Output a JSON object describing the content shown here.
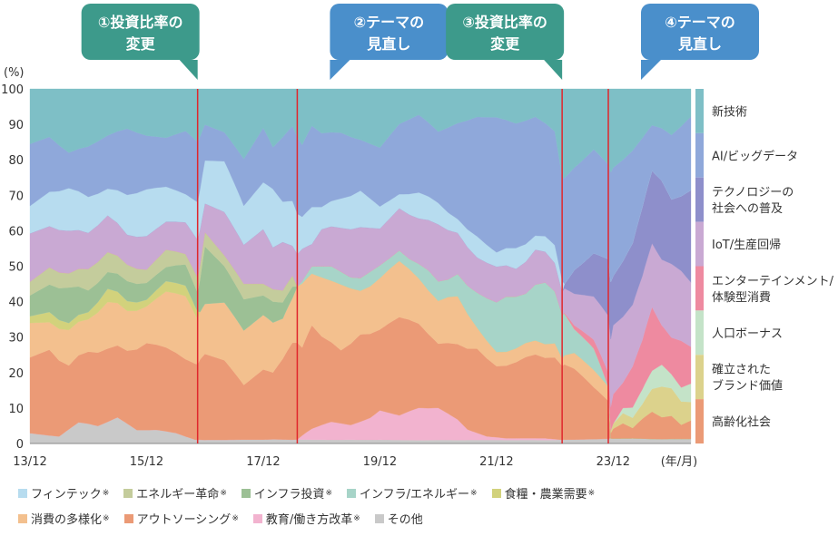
{
  "chart_data": {
    "type": "area",
    "stacked": true,
    "y_unit_label": "(%)",
    "x_unit_label": "(年/月)",
    "ylim": [
      0,
      100
    ],
    "y_ticks": [
      0,
      10,
      20,
      30,
      40,
      50,
      60,
      70,
      80,
      90,
      100
    ],
    "x_tick_labels": [
      {
        "label": "13/12",
        "t": 0
      },
      {
        "label": "15/12",
        "t": 24
      },
      {
        "label": "17/12",
        "t": 48
      },
      {
        "label": "19/12",
        "t": 72
      },
      {
        "label": "21/12",
        "t": 96
      },
      {
        "label": "23/12",
        "t": 120
      }
    ],
    "x_range_months": [
      0,
      136
    ],
    "events": [
      {
        "t": 34.5,
        "line1": "①投資比率の",
        "line2": "変更",
        "color": "#3d9a8b"
      },
      {
        "t": 55,
        "line1": "②テーマの",
        "line2": "見直し",
        "color": "#4a8fcb"
      },
      {
        "t": 109.5,
        "line1": "③投資比率の",
        "line2": "変更",
        "color": "#3d9a8b"
      },
      {
        "t": 119,
        "line1": "④テーマの",
        "line2": "見直し",
        "color": "#4a8fcb"
      }
    ],
    "series": [
      {
        "key": "sonota",
        "name": "その他",
        "legend": true,
        "star": false,
        "color": "#c9c9c9",
        "t": [
          0,
          6,
          10,
          14,
          18,
          22,
          26,
          30,
          34,
          40,
          46,
          50,
          54,
          58,
          62,
          66,
          70,
          74,
          78,
          82,
          86,
          90,
          94,
          98,
          102,
          106,
          110,
          136
        ],
        "v": [
          3,
          2,
          6,
          5,
          8,
          4,
          4,
          3,
          1,
          1,
          1,
          1,
          1,
          1,
          1,
          1,
          1,
          1,
          1,
          1,
          1,
          1,
          1,
          1,
          1,
          1,
          1,
          1
        ]
      },
      {
        "key": "kyouiku",
        "name": "教育/働き方改革",
        "legend": true,
        "star": true,
        "color": "#f2b3cf",
        "t": [
          0,
          52,
          55,
          58,
          62,
          66,
          70,
          72,
          76,
          80,
          84,
          88,
          90,
          94,
          98,
          102,
          106,
          109.5
        ],
        "v": [
          0,
          0,
          0,
          3,
          5,
          4,
          6,
          8,
          7,
          10,
          9,
          6,
          3,
          1,
          0.5,
          0.5,
          0.5,
          0
        ]
      },
      {
        "key": "outsourcing",
        "name": "アウトソーシング",
        "legend": true,
        "star": true,
        "color": "#eb9a76",
        "t": [
          0,
          4,
          8,
          12,
          16,
          20,
          24,
          28,
          32,
          34.5,
          36,
          40,
          44,
          48,
          50,
          52,
          54,
          56,
          58,
          60,
          64,
          68,
          72,
          76,
          80,
          84,
          88,
          92,
          96,
          100,
          104,
          108,
          109.5,
          112,
          116,
          119
        ],
        "v": [
          22,
          25,
          18,
          20,
          22,
          22,
          26,
          24,
          22,
          20,
          24,
          22,
          14,
          18,
          16,
          20,
          26,
          22,
          28,
          24,
          20,
          24,
          22,
          28,
          26,
          18,
          22,
          24,
          20,
          22,
          24,
          23,
          20,
          18,
          12,
          8
        ]
      },
      {
        "key": "shouhi",
        "name": "消費の多様化",
        "legend": true,
        "star": true,
        "color": "#f3c08e",
        "t": [
          0,
          4,
          8,
          12,
          16,
          20,
          24,
          28,
          32,
          34.5,
          36,
          40,
          44,
          48,
          50,
          52,
          54,
          56,
          58,
          60,
          64,
          68,
          72,
          76,
          80,
          84,
          88,
          92,
          96,
          100,
          104,
          108,
          109.5,
          112,
          116,
          119
        ],
        "v": [
          10,
          8,
          10,
          9,
          14,
          12,
          11,
          16,
          18,
          12,
          14,
          16,
          14,
          14,
          12,
          10,
          12,
          16,
          14,
          16,
          18,
          12,
          14,
          16,
          14,
          12,
          14,
          6,
          4,
          4,
          4,
          4,
          2,
          4,
          4,
          3
        ]
      },
      {
        "key": "shokuryou",
        "name": "食糧・農業需要",
        "legend": true,
        "star": true,
        "color": "#d2d27c",
        "t": [
          0,
          4,
          8,
          12,
          16,
          20,
          24,
          28,
          32,
          34.5
        ],
        "v": [
          2,
          3,
          2,
          2,
          4,
          3,
          2,
          3,
          3,
          2
        ]
      },
      {
        "key": "infra_energy",
        "name": "インフラ/エネルギー",
        "legend": true,
        "star": true,
        "color": "#a7d4c8",
        "t": [
          0,
          34.5,
          36,
          55,
          58,
          62,
          66,
          70,
          74,
          78,
          82,
          86,
          90,
          94,
          98,
          102,
          106,
          109.5,
          112,
          116,
          119
        ],
        "v": [
          0,
          0,
          0,
          0,
          2,
          4,
          3,
          4,
          3,
          3,
          6,
          5,
          8,
          12,
          16,
          14,
          18,
          12,
          6,
          5,
          0
        ]
      },
      {
        "key": "infra_toushi",
        "name": "インフラ投資",
        "legend": true,
        "star": true,
        "color": "#9cc095",
        "t": [
          0,
          4,
          8,
          12,
          16,
          20,
          24,
          28,
          32,
          34.5,
          36,
          40,
          44,
          48,
          50,
          52,
          54,
          55,
          58
        ],
        "v": [
          6,
          8,
          10,
          6,
          5,
          6,
          5,
          4,
          6,
          5,
          16,
          10,
          8,
          5,
          5,
          4,
          3,
          0,
          0
        ]
      },
      {
        "key": "energy_kakumei",
        "name": "エネルギー革命",
        "legend": true,
        "star": true,
        "color": "#c4cc9c",
        "t": [
          0,
          4,
          8,
          12,
          16,
          20,
          24,
          28,
          32,
          34.5,
          36,
          40,
          44,
          48,
          50,
          52,
          54,
          55,
          58
        ],
        "v": [
          4,
          5,
          4,
          6,
          6,
          5,
          4,
          5,
          3,
          4,
          4,
          3,
          4,
          3,
          3,
          3,
          3,
          0,
          0
        ]
      },
      {
        "key": "koureika",
        "name": "高齢化社会",
        "legend": false,
        "star": false,
        "color": "#eb9a76",
        "t": [
          0,
          119,
          120,
          122,
          124,
          126,
          128,
          130,
          132,
          134,
          136
        ],
        "v": [
          0,
          0,
          2,
          3,
          2,
          4,
          6,
          5,
          5,
          3,
          4
        ]
      },
      {
        "key": "brand",
        "name": "確立されたブランド価値",
        "legend": false,
        "star": false,
        "color": "#dcd28c",
        "t": [
          0,
          119,
          120,
          122,
          124,
          126,
          128,
          130,
          132,
          134,
          136
        ],
        "v": [
          0,
          0,
          1,
          2,
          2,
          3,
          5,
          7,
          6,
          5,
          4
        ]
      },
      {
        "key": "jinkou",
        "name": "人口ボーナス",
        "legend": false,
        "star": false,
        "color": "#c4e3c8",
        "t": [
          0,
          119,
          120,
          122,
          124,
          126,
          128,
          130,
          132,
          134,
          136
        ],
        "v": [
          0,
          0,
          0,
          1,
          2,
          3,
          4,
          5,
          3,
          3,
          4
        ]
      },
      {
        "key": "entertainment",
        "name": "エンターテインメント/体験型消費",
        "legend": false,
        "star": false,
        "color": "#ee8aa0",
        "t": [
          0,
          109.5,
          112,
          116,
          119,
          120,
          122,
          124,
          126,
          128,
          130,
          132,
          134,
          136
        ],
        "v": [
          0,
          0,
          1,
          2,
          3,
          6,
          5,
          8,
          10,
          14,
          9,
          8,
          10,
          8
        ]
      },
      {
        "key": "iot",
        "name": "IoT/生産回帰",
        "legend": false,
        "star": false,
        "color": "#c9a9d3",
        "t": [
          0,
          4,
          8,
          12,
          16,
          20,
          24,
          28,
          32,
          34.5,
          36,
          40,
          44,
          48,
          50,
          52,
          54,
          56,
          58,
          60,
          64,
          68,
          72,
          76,
          80,
          84,
          88,
          92,
          96,
          100,
          104,
          108,
          109.5,
          112,
          116,
          119,
          120,
          124,
          128,
          132,
          136
        ],
        "v": [
          14,
          12,
          12,
          10,
          11,
          9,
          10,
          8,
          9,
          10,
          8,
          12,
          10,
          14,
          10,
          12,
          8,
          8,
          6,
          10,
          12,
          14,
          10,
          12,
          14,
          16,
          12,
          10,
          10,
          8,
          10,
          8,
          6,
          8,
          10,
          12,
          14,
          12,
          14,
          16,
          14
        ]
      },
      {
        "key": "techno",
        "name": "テクノロジーの社会への普及",
        "legend": false,
        "star": false,
        "color": "#8e8fcb",
        "t": [
          0,
          109.5,
          112,
          116,
          119,
          120,
          124,
          128,
          130,
          132,
          134,
          136
        ],
        "v": [
          0,
          0,
          6,
          10,
          12,
          10,
          12,
          16,
          18,
          14,
          16,
          20
        ]
      },
      {
        "key": "fintech",
        "name": "フィンテック",
        "legend": true,
        "star": true,
        "color": "#b7dcef",
        "t": [
          0,
          4,
          8,
          12,
          16,
          20,
          24,
          28,
          32,
          34.5,
          36,
          40,
          44,
          48,
          50,
          52,
          54,
          56,
          58,
          60,
          64,
          68,
          72,
          76,
          80,
          84,
          88,
          92,
          96,
          100,
          104,
          108,
          109.5
        ],
        "v": [
          8,
          10,
          12,
          10,
          8,
          12,
          14,
          10,
          8,
          10,
          12,
          14,
          10,
          12,
          14,
          10,
          12,
          8,
          10,
          6,
          8,
          10,
          6,
          4,
          8,
          6,
          4,
          6,
          4,
          6,
          4,
          5,
          3
        ]
      },
      {
        "key": "ai",
        "name": "AI/ビッグデータ",
        "legend": false,
        "star": false,
        "color": "#8fa8da",
        "t": [
          0,
          4,
          8,
          12,
          16,
          20,
          24,
          28,
          32,
          34.5,
          36,
          40,
          44,
          48,
          50,
          52,
          54,
          56,
          58,
          60,
          64,
          68,
          72,
          76,
          80,
          84,
          88,
          92,
          96,
          100,
          104,
          108,
          109.5,
          112,
          116,
          119,
          120,
          124,
          128,
          132,
          136
        ],
        "v": [
          18,
          16,
          10,
          14,
          16,
          20,
          16,
          14,
          18,
          16,
          10,
          8,
          12,
          14,
          10,
          16,
          20,
          18,
          22,
          20,
          18,
          14,
          16,
          20,
          24,
          20,
          28,
          34,
          38,
          36,
          34,
          32,
          28,
          26,
          24,
          20,
          22,
          18,
          10,
          14,
          16
        ]
      },
      {
        "key": "shingijutsu",
        "name": "新技術",
        "legend": false,
        "star": false,
        "color": "#7ebfc6",
        "t": [
          0,
          4,
          8,
          12,
          16,
          20,
          24,
          28,
          32,
          34.5,
          36,
          40,
          44,
          48,
          50,
          52,
          54,
          56,
          58,
          60,
          64,
          68,
          72,
          76,
          80,
          84,
          88,
          92,
          96,
          100,
          104,
          108,
          109.5,
          112,
          116,
          119,
          120,
          124,
          128,
          132,
          136
        ],
        "v": [
          16,
          14,
          18,
          16,
          14,
          12,
          14,
          14,
          12,
          14,
          10,
          12,
          18,
          10,
          14,
          12,
          10,
          14,
          10,
          12,
          12,
          14,
          16,
          10,
          8,
          12,
          10,
          8,
          8,
          10,
          8,
          12,
          24,
          20,
          14,
          16,
          16,
          12,
          8,
          10,
          6
        ]
      }
    ],
    "right_legend": [
      {
        "lines": [
          "新技術"
        ],
        "color": "#7ebfc6"
      },
      {
        "lines": [
          "AI/ビッグデータ"
        ],
        "color": "#8fa8da"
      },
      {
        "lines": [
          "テクノロジーの",
          "社会への普及"
        ],
        "color": "#8e8fcb"
      },
      {
        "lines": [
          "IoT/生産回帰"
        ],
        "color": "#c9a9d3"
      },
      {
        "lines": [
          "エンターテインメント/",
          "体験型消費"
        ],
        "color": "#ee8aa0"
      },
      {
        "lines": [
          "人口ボーナス"
        ],
        "color": "#c4e3c8"
      },
      {
        "lines": [
          "確立された",
          "ブランド価値"
        ],
        "color": "#dcd28c"
      },
      {
        "lines": [
          "高齢化社会"
        ],
        "color": "#eb9a76"
      }
    ],
    "bottom_legend_rows": [
      [
        "fintech",
        "energy_kakumei",
        "infra_toushi",
        "infra_energy",
        "shokuryou"
      ],
      [
        "shouhi",
        "outsourcing",
        "kyouiku",
        "sonota"
      ]
    ],
    "star_mark": "※"
  }
}
